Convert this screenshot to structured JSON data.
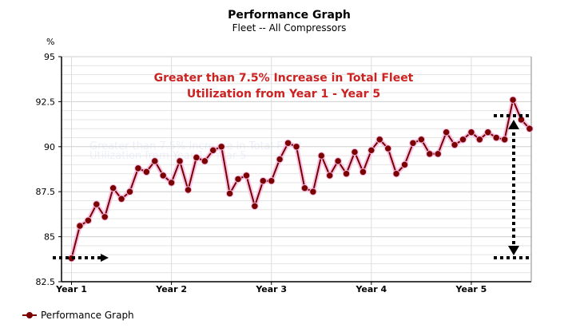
{
  "chart_data": {
    "type": "line",
    "title": "Performance Graph",
    "subtitle": "Fleet -- All Compressors",
    "ylabel": "%",
    "ylim": [
      82.5,
      95
    ],
    "yticks": [
      "95",
      "92.5",
      "90",
      "87.5",
      "85",
      "82.5"
    ],
    "ytick_values": [
      95,
      92.5,
      90,
      87.5,
      85,
      82.5
    ],
    "xlim": [
      0.9,
      5.6
    ],
    "xticks": [
      "Year 1",
      "Year 2",
      "Year 3",
      "Year 4",
      "Year 5"
    ],
    "xtick_values": [
      1,
      2,
      3,
      4,
      5
    ],
    "grid": true,
    "legend_position": "bottom-left",
    "series": [
      {
        "name": "Performance Graph",
        "color": "#7a0000",
        "x": [
          1.0,
          1.0833,
          1.1667,
          1.25,
          1.3333,
          1.4167,
          1.5,
          1.5833,
          1.6667,
          1.75,
          1.8333,
          1.9167,
          2.0,
          2.0833,
          2.1667,
          2.25,
          2.3333,
          2.4167,
          2.5,
          2.5833,
          2.6667,
          2.75,
          2.8333,
          2.9167,
          3.0,
          3.0833,
          3.1667,
          3.25,
          3.3333,
          3.4167,
          3.5,
          3.5833,
          3.6667,
          3.75,
          3.8333,
          3.9167,
          4.0,
          4.0833,
          4.1667,
          4.25,
          4.3333,
          4.4167,
          4.5,
          4.5833,
          4.6667,
          4.75,
          4.8333,
          4.9167,
          5.0,
          5.0833,
          5.1667,
          5.25,
          5.3333,
          5.4167,
          5.5,
          5.5833
        ],
        "values": [
          83.8,
          85.6,
          85.9,
          86.8,
          86.1,
          87.7,
          87.1,
          87.5,
          88.8,
          88.6,
          89.2,
          88.4,
          88.0,
          89.2,
          87.6,
          89.4,
          89.2,
          89.8,
          90.0,
          87.4,
          88.2,
          88.4,
          86.7,
          88.1,
          88.1,
          89.3,
          90.2,
          90.0,
          87.7,
          87.5,
          89.5,
          88.4,
          89.2,
          88.5,
          89.7,
          88.6,
          89.8,
          90.4,
          89.9,
          88.5,
          89.0,
          90.2,
          90.4,
          89.6,
          89.6,
          90.8,
          90.1,
          90.4,
          90.8,
          90.4,
          90.8,
          90.5,
          90.4,
          92.6,
          91.5,
          91.0
        ]
      }
    ],
    "annotations": [
      {
        "text": "Greater than 7.5% Increase in Total Fleet",
        "color": "#cc2222"
      },
      {
        "text": "Utilization from Year 1 - Year 5",
        "color": "#cc2222"
      }
    ]
  }
}
